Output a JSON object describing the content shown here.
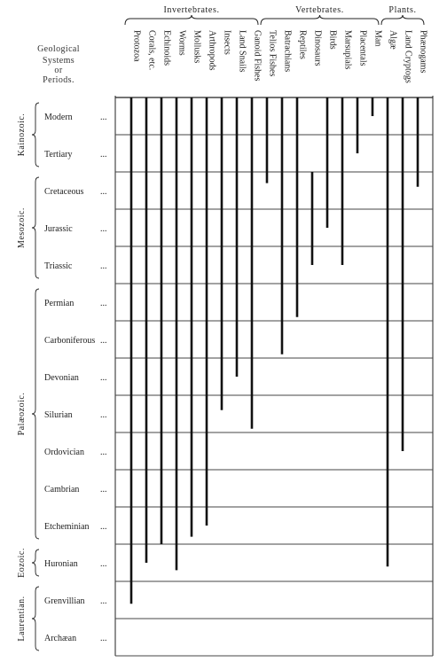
{
  "groups": [
    {
      "label": "Invertebrates.",
      "cols": [
        0,
        9
      ]
    },
    {
      "label": "Vertebrates.",
      "cols": [
        9,
        17
      ]
    },
    {
      "label": "Plants.",
      "cols": [
        17,
        20
      ]
    }
  ],
  "left_header": [
    "Geological",
    "Systems",
    "or",
    "Periods."
  ],
  "columns": [
    "Protozoa",
    "Corals, etc.",
    "Echinoids",
    "Worms",
    "Mollusks",
    "Arthropods",
    "Insects",
    "Land Snails",
    "Ganoid Fishes",
    "Telios Fishes",
    "Batrachians",
    "Reptiles",
    "Dinosaurs",
    "Birds",
    "Marsupials",
    "Placentals",
    "Man",
    "Algæ",
    "Land Cryptogs",
    "Phænogams"
  ],
  "periods": [
    "Modern",
    "Tertiary",
    "Cretaceous",
    "Jurassic",
    "Triassic",
    "Permian",
    "Carboniferous",
    "Devonian",
    "Silurian",
    "Ordovician",
    "Cambrian",
    "Etcheminian",
    "Huronian",
    "Grenvillian",
    "Archæan"
  ],
  "period_suffix": "...",
  "eras": [
    {
      "label": "Kainozoic.",
      "range": [
        0,
        1
      ]
    },
    {
      "label": "Mesozoic.",
      "range": [
        2,
        4
      ]
    },
    {
      "label": "Palæozoic.",
      "range": [
        5,
        11
      ]
    },
    {
      "label": "Eozoic.",
      "range": [
        12,
        12
      ]
    },
    {
      "label": "Laurentian.",
      "range": [
        13,
        14
      ]
    }
  ],
  "chart_data": {
    "type": "range-chart",
    "note": "Each life group spans from the period where it first appears (start) up to Modern; index 0 = Modern, 14 = Archæan.",
    "ranges": [
      {
        "name": "Protozoa",
        "from_period": "Grenvillian",
        "to_period": "Modern",
        "start_index": 13.6
      },
      {
        "name": "Corals, etc.",
        "from_period": "Huronian",
        "to_period": "Modern",
        "start_index": 12.5
      },
      {
        "name": "Echinoids",
        "from_period": "Huronian",
        "to_period": "Modern",
        "start_index": 12.0
      },
      {
        "name": "Worms",
        "from_period": "Huronian",
        "to_period": "Modern",
        "start_index": 12.7
      },
      {
        "name": "Mollusks",
        "from_period": "Etcheminian",
        "to_period": "Modern",
        "start_index": 11.8
      },
      {
        "name": "Arthropods",
        "from_period": "Etcheminian",
        "to_period": "Modern",
        "start_index": 11.5
      },
      {
        "name": "Insects",
        "from_period": "Silurian",
        "to_period": "Modern",
        "start_index": 8.4
      },
      {
        "name": "Land Snails",
        "from_period": "Devonian",
        "to_period": "Modern",
        "start_index": 7.5
      },
      {
        "name": "Ganoid Fishes",
        "from_period": "Silurian",
        "to_period": "Modern",
        "start_index": 8.9
      },
      {
        "name": "Telios Fishes",
        "from_period": "Cretaceous",
        "to_period": "Modern",
        "start_index": 2.3
      },
      {
        "name": "Batrachians",
        "from_period": "Carboniferous",
        "to_period": "Modern",
        "start_index": 6.9
      },
      {
        "name": "Reptiles",
        "from_period": "Permian",
        "to_period": "Modern",
        "start_index": 5.9
      },
      {
        "name": "Dinosaurs",
        "from_period": "Triassic",
        "to_period": "Cretaceous",
        "start_index": 4.5,
        "end_index": 2.0
      },
      {
        "name": "Birds",
        "from_period": "Jurassic",
        "to_period": "Modern",
        "start_index": 3.5
      },
      {
        "name": "Marsupials",
        "from_period": "Triassic",
        "to_period": "Modern",
        "start_index": 4.5
      },
      {
        "name": "Placentals",
        "from_period": "Tertiary",
        "to_period": "Modern",
        "start_index": 1.5
      },
      {
        "name": "Man",
        "from_period": "Modern",
        "to_period": "Modern",
        "start_index": 0.5
      },
      {
        "name": "Algæ",
        "from_period": "Huronian",
        "to_period": "Modern",
        "start_index": 12.6
      },
      {
        "name": "Land Cryptogs",
        "from_period": "Ordovician",
        "to_period": "Modern",
        "start_index": 9.5
      },
      {
        "name": "Phænogams",
        "from_period": "Cretaceous",
        "to_period": "Modern",
        "start_index": 2.4
      }
    ]
  }
}
